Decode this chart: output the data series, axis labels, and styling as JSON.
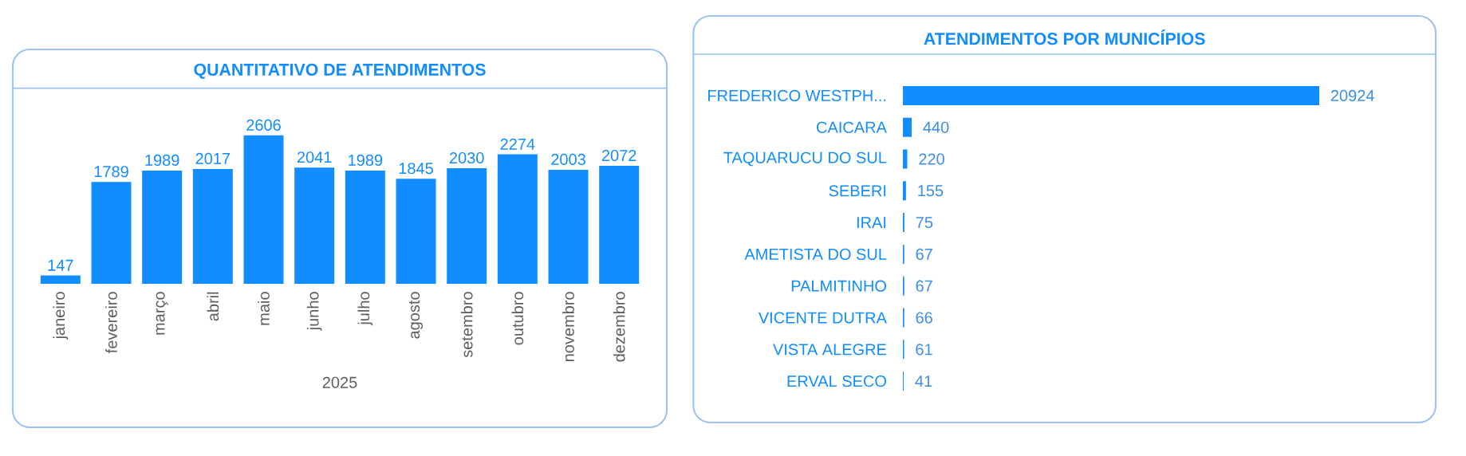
{
  "chart_data": [
    {
      "type": "bar",
      "title": "QUANTITATIVO DE ATENDIMENTOS",
      "xlabel": "2025",
      "categories": [
        "janeiro",
        "fevereiro",
        "março",
        "abril",
        "maio",
        "junho",
        "julho",
        "agosto",
        "setembro",
        "outubro",
        "novembro",
        "dezembro"
      ],
      "values": [
        147,
        1789,
        1989,
        2017,
        2606,
        2041,
        1989,
        1845,
        2030,
        2274,
        2003,
        2072
      ],
      "color": "#118dff",
      "data_labels": true
    },
    {
      "type": "bar",
      "orientation": "horizontal",
      "title": "ATENDIMENTOS POR MUNICÍPIOS",
      "categories": [
        "FREDERICO WESTPH...",
        "CAICARA",
        "TAQUARUCU DO SUL",
        "SEBERI",
        "IRAI",
        "AMETISTA DO SUL",
        "PALMITINHO",
        "VICENTE DUTRA",
        "VISTA ALEGRE",
        "ERVAL SECO"
      ],
      "values": [
        20924,
        440,
        220,
        155,
        75,
        67,
        67,
        66,
        61,
        41
      ],
      "color": "#118dff",
      "data_labels": true
    }
  ]
}
